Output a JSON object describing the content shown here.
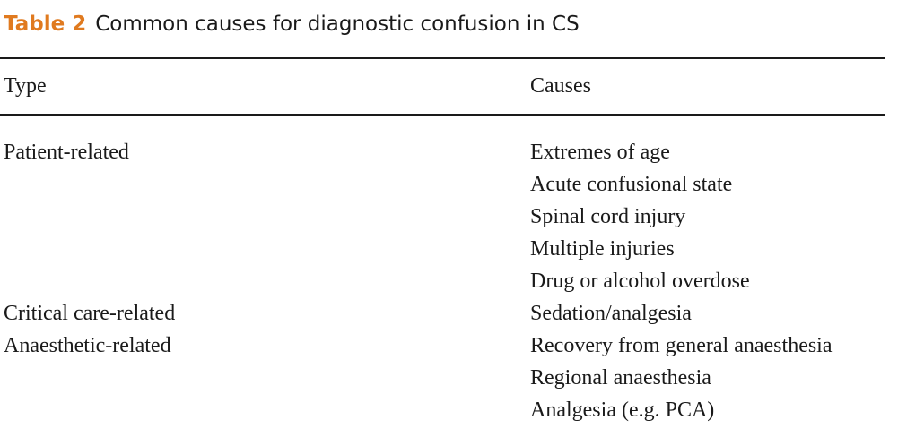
{
  "table": {
    "label": "Table 2",
    "title": "Common causes for diagnostic confusion in CS",
    "headers": {
      "type": "Type",
      "causes": "Causes"
    },
    "rows": [
      {
        "type": "Patient-related",
        "cause": "Extremes of age"
      },
      {
        "type": "",
        "cause": "Acute confusional state"
      },
      {
        "type": "",
        "cause": "Spinal cord injury"
      },
      {
        "type": "",
        "cause": "Multiple injuries"
      },
      {
        "type": "",
        "cause": "Drug or alcohol overdose"
      },
      {
        "type": "Critical care-related",
        "cause": "Sedation/analgesia"
      },
      {
        "type": "Anaesthetic-related",
        "cause": "Recovery from general anaesthesia"
      },
      {
        "type": "",
        "cause": "Regional anaesthesia"
      },
      {
        "type": "",
        "cause": "Analgesia (e.g. PCA)"
      }
    ]
  }
}
